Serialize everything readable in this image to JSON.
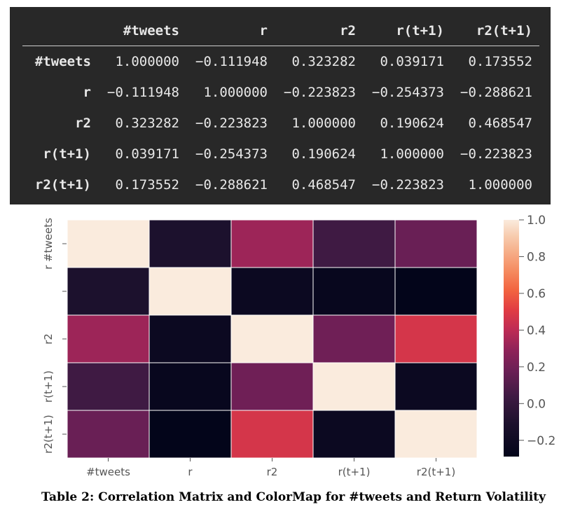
{
  "table": {
    "columns": [
      "#tweets",
      "r",
      "r2",
      "r(t+1)",
      "r2(t+1)"
    ],
    "rows": [
      {
        "label": "#tweets",
        "values": [
          "1.000000",
          "−0.111948",
          "0.323282",
          "0.039171",
          "0.173552"
        ]
      },
      {
        "label": "r",
        "values": [
          "−0.111948",
          "1.000000",
          "−0.223823",
          "−0.254373",
          "−0.288621"
        ]
      },
      {
        "label": "r2",
        "values": [
          "0.323282",
          "−0.223823",
          "1.000000",
          "0.190624",
          "0.468547"
        ]
      },
      {
        "label": "r(t+1)",
        "values": [
          "0.039171",
          "−0.254373",
          "0.190624",
          "1.000000",
          "−0.223823"
        ]
      },
      {
        "label": "r2(t+1)",
        "values": [
          "0.173552",
          "−0.288621",
          "0.468547",
          "−0.223823",
          "1.000000"
        ]
      }
    ]
  },
  "chart_data": {
    "type": "heatmap",
    "x_labels": [
      "#tweets",
      "r",
      "r2",
      "r(t+1)",
      "r2(t+1)"
    ],
    "y_labels": [
      "r #tweets",
      "",
      "r2",
      "r(t+1)",
      "r2(t+1)"
    ],
    "matrix": [
      [
        1.0,
        -0.111948,
        0.323282,
        0.039171,
        0.173552
      ],
      [
        -0.111948,
        1.0,
        -0.223823,
        -0.254373,
        -0.288621
      ],
      [
        0.323282,
        -0.223823,
        1.0,
        0.190624,
        0.468547
      ],
      [
        0.039171,
        -0.254373,
        0.190624,
        1.0,
        -0.223823
      ],
      [
        0.173552,
        -0.288621,
        0.468547,
        -0.223823,
        1.0
      ]
    ],
    "colorbar": {
      "range": [
        -0.288621,
        1.0
      ],
      "ticks": [
        1.0,
        0.8,
        0.6,
        0.4,
        0.2,
        0.0,
        -0.2
      ],
      "tick_labels": [
        "1.0",
        "0.8",
        "0.6",
        "0.4",
        "0.2",
        "0.0",
        "−0.2"
      ]
    },
    "colormap": "rocket"
  },
  "caption": "Table 2: Correlation Matrix and ColorMap for #tweets and Return Volatility"
}
